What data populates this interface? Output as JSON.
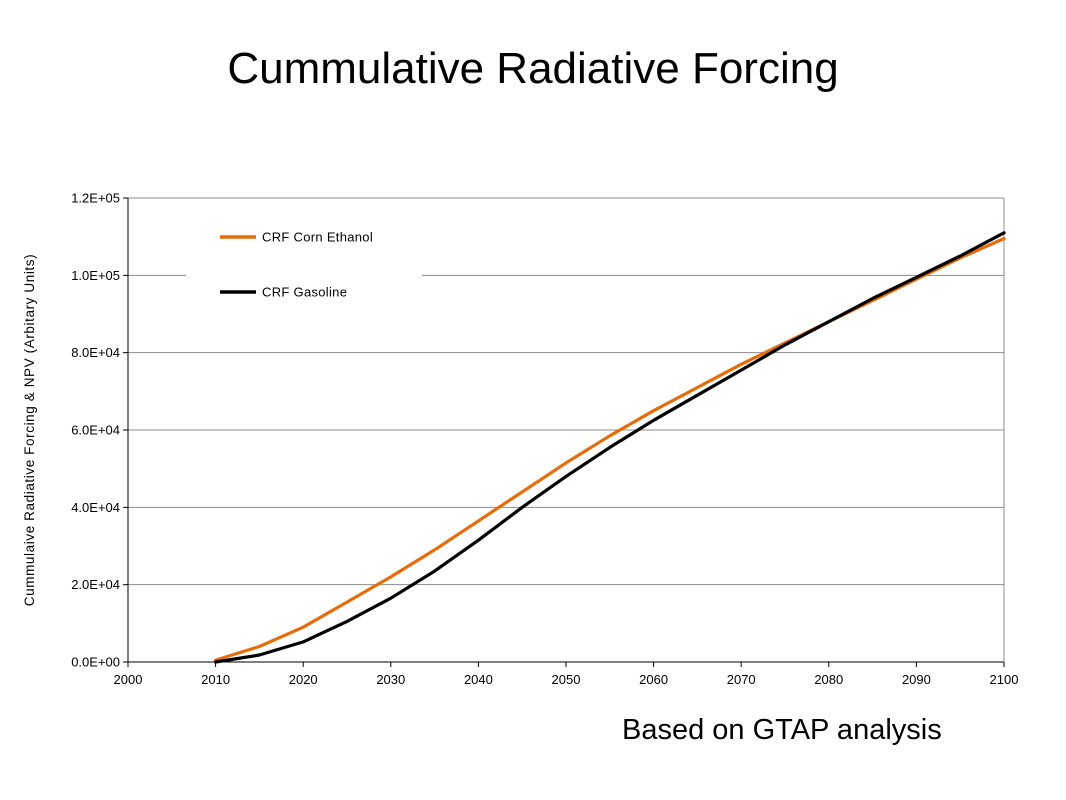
{
  "slide": {
    "title": "Cummulative Radiative Forcing",
    "footnote": "Based on GTAP analysis"
  },
  "chart_data": {
    "type": "line",
    "title": "",
    "xlabel": "",
    "ylabel": "Cummulaive Radiative Forcing & NPV (Arbitary Units)",
    "xlim": [
      2000,
      2100
    ],
    "ylim": [
      0,
      120000
    ],
    "x_ticks": [
      "2000",
      "2010",
      "2020",
      "2030",
      "2040",
      "2050",
      "2060",
      "2070",
      "2080",
      "2090",
      "2100"
    ],
    "y_ticks": [
      "0.0E+00",
      "2.0E+04",
      "4.0E+04",
      "6.0E+04",
      "8.0E+04",
      "1.0E+05",
      "1.2E+05"
    ],
    "grid": "horizontal",
    "legend_position": "top-left",
    "series": [
      {
        "name": "CRF Corn Ethanol",
        "color": "#E46C0A",
        "x": [
          2010,
          2015,
          2020,
          2025,
          2030,
          2035,
          2040,
          2045,
          2050,
          2055,
          2060,
          2065,
          2070,
          2075,
          2080,
          2085,
          2090,
          2095,
          2100
        ],
        "values": [
          500,
          4000,
          9000,
          15500,
          22000,
          29000,
          36500,
          44000,
          51500,
          58500,
          65000,
          71000,
          77000,
          82500,
          88000,
          93500,
          99000,
          104500,
          109500
        ]
      },
      {
        "name": "CRF Gasoline",
        "color": "#000000",
        "x": [
          2010,
          2015,
          2020,
          2025,
          2030,
          2035,
          2040,
          2045,
          2050,
          2055,
          2060,
          2065,
          2070,
          2075,
          2080,
          2085,
          2090,
          2095,
          2100
        ],
        "values": [
          0,
          1800,
          5200,
          10500,
          16500,
          23500,
          31500,
          40000,
          48000,
          55500,
          62500,
          69000,
          75500,
          82000,
          88000,
          94000,
          99500,
          105000,
          111000
        ]
      }
    ]
  }
}
